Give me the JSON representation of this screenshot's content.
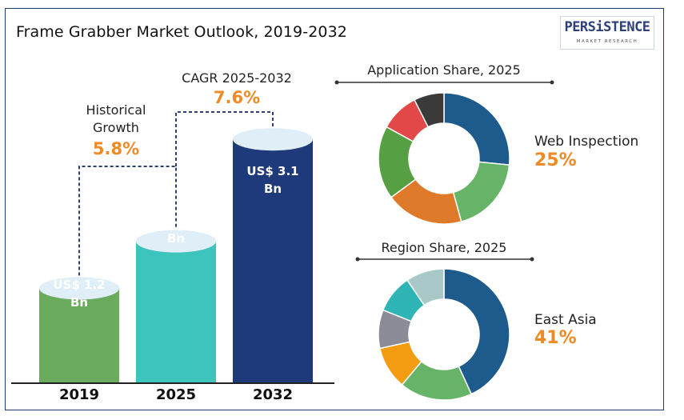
{
  "title": "Frame Grabber Market Outlook, 2019-2032",
  "logo": {
    "main": "PERSiSTENCE",
    "sub": "MARKET RESEARCH"
  },
  "growth": {
    "historical_label_1": "Historical",
    "historical_label_2": "Growth",
    "historical_value": "5.8%",
    "cagr_label": "CAGR 2025-2032",
    "cagr_value": "7.6%"
  },
  "chart_data": [
    {
      "type": "bar",
      "title": "Frame Grabber Market Outlook, 2019-2032",
      "categories": [
        "2019",
        "2025",
        "2032"
      ],
      "values": [
        1.2,
        1.8,
        3.1
      ],
      "value_labels_line1": [
        "US$ 1.2",
        "US$ 1.8",
        "US$ 3.1"
      ],
      "value_labels_line2": [
        "Bn",
        "Bn",
        "Bn"
      ],
      "unit": "US$ Bn",
      "colors": [
        "#6aab5e",
        "#3dc4bd",
        "#1f3a7a"
      ],
      "cylinder_top_color": "#dfeef7"
    },
    {
      "type": "pie",
      "title": "Application Share, 2025",
      "values": [
        25,
        18,
        18,
        17,
        9,
        7
      ],
      "colors": [
        "#1d5b8c",
        "#67b368",
        "#e07a2b",
        "#56a043",
        "#e34848",
        "#3a3a3a"
      ],
      "callout": {
        "label": "Web Inspection",
        "value": "25%"
      }
    },
    {
      "type": "pie",
      "title": "Region Share, 2025",
      "values": [
        41,
        17,
        10,
        9,
        9,
        9
      ],
      "colors": [
        "#1d5b8c",
        "#67b368",
        "#f39c12",
        "#8c8c99",
        "#2fb5b5",
        "#a9c9c9"
      ],
      "callout": {
        "label": "East Asia",
        "value": "41%"
      }
    }
  ]
}
